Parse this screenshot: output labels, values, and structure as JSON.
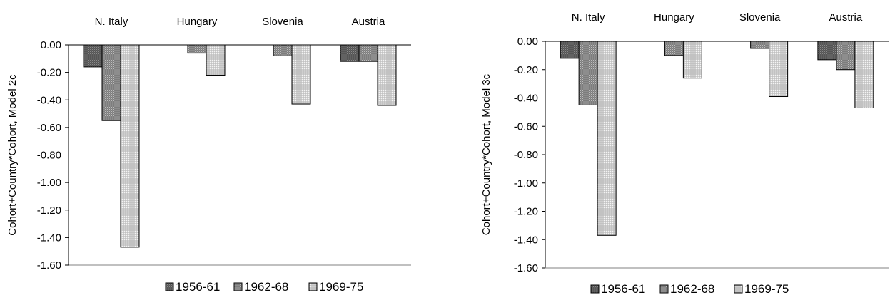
{
  "chart_data": [
    {
      "type": "bar",
      "categories": [
        "N. Italy",
        "Hungary",
        "Slovenia",
        "Austria"
      ],
      "ylabel": "Cohort+Country*Cohort, Model 2c",
      "ylim": [
        -1.6,
        0.0
      ],
      "yticks": [
        0.0,
        -0.2,
        -0.4,
        -0.6,
        -0.8,
        -1.0,
        -1.2,
        -1.4,
        -1.6
      ],
      "ytick_labels": [
        "0.00",
        "-0.20",
        "-0.40",
        "-0.60",
        "-0.80",
        "-1.00",
        "-1.20",
        "-1.40",
        "-1.60"
      ],
      "legend_position": "bottom",
      "series": [
        {
          "name": "1956-61",
          "values": [
            -0.16,
            0.0,
            0.0,
            -0.12
          ]
        },
        {
          "name": "1962-68",
          "values": [
            -0.55,
            -0.06,
            -0.08,
            -0.12
          ]
        },
        {
          "name": "1969-75",
          "values": [
            -1.47,
            -0.22,
            -0.43,
            -0.44
          ]
        }
      ]
    },
    {
      "type": "bar",
      "categories": [
        "N. Italy",
        "Hungary",
        "Slovenia",
        "Austria"
      ],
      "ylabel": "Cohort+Country*Cohort, Model 3c",
      "ylim": [
        -1.6,
        0.0
      ],
      "yticks": [
        0.0,
        -0.2,
        -0.4,
        -0.6,
        -0.8,
        -1.0,
        -1.2,
        -1.4,
        -1.6
      ],
      "ytick_labels": [
        "0.00",
        "-0.20",
        "-0.40",
        "-0.60",
        "-0.80",
        "-1.00",
        "-1.20",
        "-1.40",
        "-1.60"
      ],
      "legend_position": "bottom",
      "series": [
        {
          "name": "1956-61",
          "values": [
            -0.12,
            0.0,
            0.0,
            -0.13
          ]
        },
        {
          "name": "1962-68",
          "values": [
            -0.45,
            -0.1,
            -0.05,
            -0.2
          ]
        },
        {
          "name": "1969-75",
          "values": [
            -1.37,
            -0.26,
            -0.39,
            -0.47
          ]
        }
      ]
    }
  ]
}
